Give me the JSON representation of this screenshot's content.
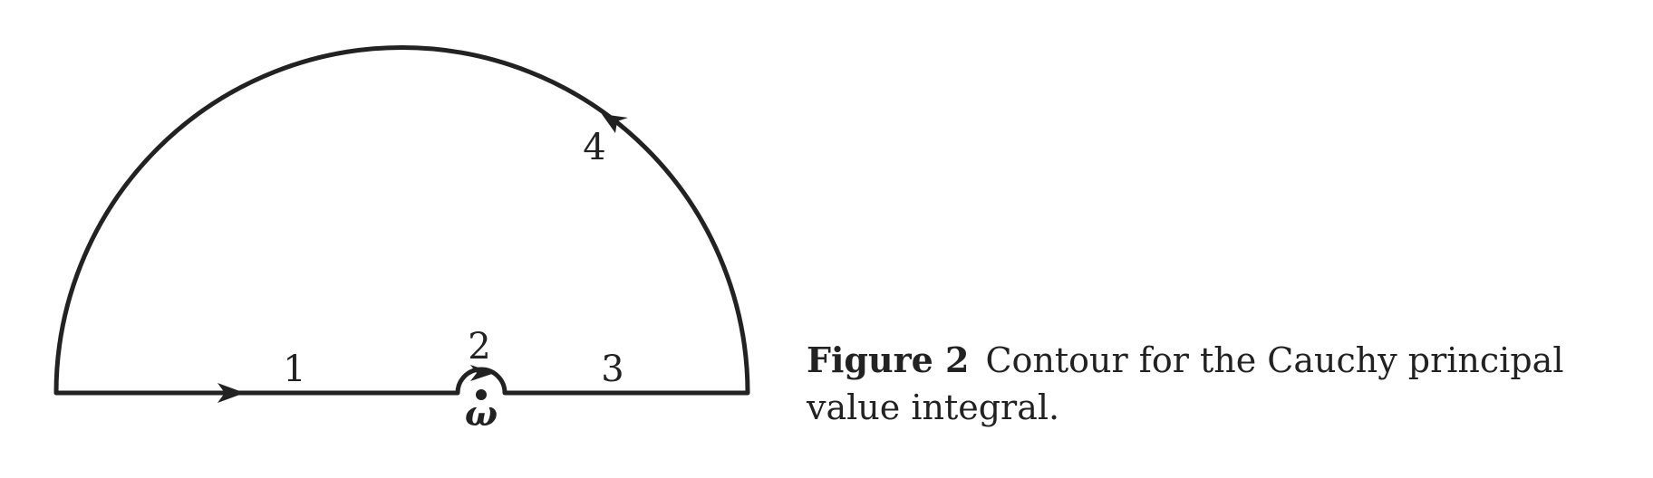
{
  "diagram": {
    "segments": [
      {
        "label": "1"
      },
      {
        "label": "2"
      },
      {
        "label": "3"
      },
      {
        "label": "4"
      }
    ],
    "pole_label": "ω",
    "stroke_color": "#222222"
  },
  "caption": {
    "label": "Figure 2",
    "text": "Contour for the Cauchy principal value integral."
  }
}
